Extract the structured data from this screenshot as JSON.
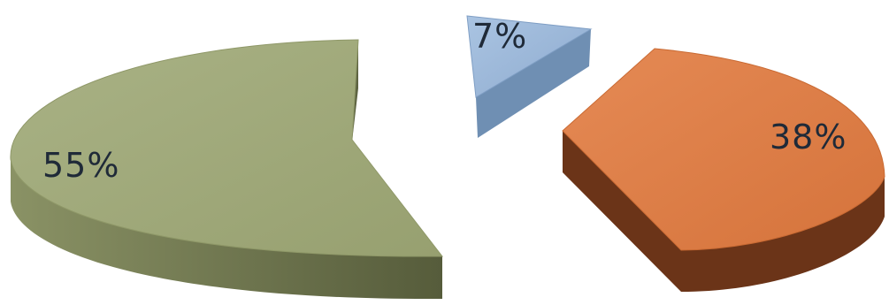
{
  "chart_data": {
    "type": "pie",
    "style": "3d-exploded",
    "legend": "none",
    "slices": [
      {
        "label": "55%",
        "value": 55,
        "color": "#9ea879",
        "side_color": "#6f7650"
      },
      {
        "label": "7%",
        "value": 7,
        "color": "#9bb6d6",
        "side_color": "#6f8fb3"
      },
      {
        "label": "38%",
        "value": 38,
        "color": "#de7d45",
        "side_color": "#6b3418"
      }
    ]
  }
}
